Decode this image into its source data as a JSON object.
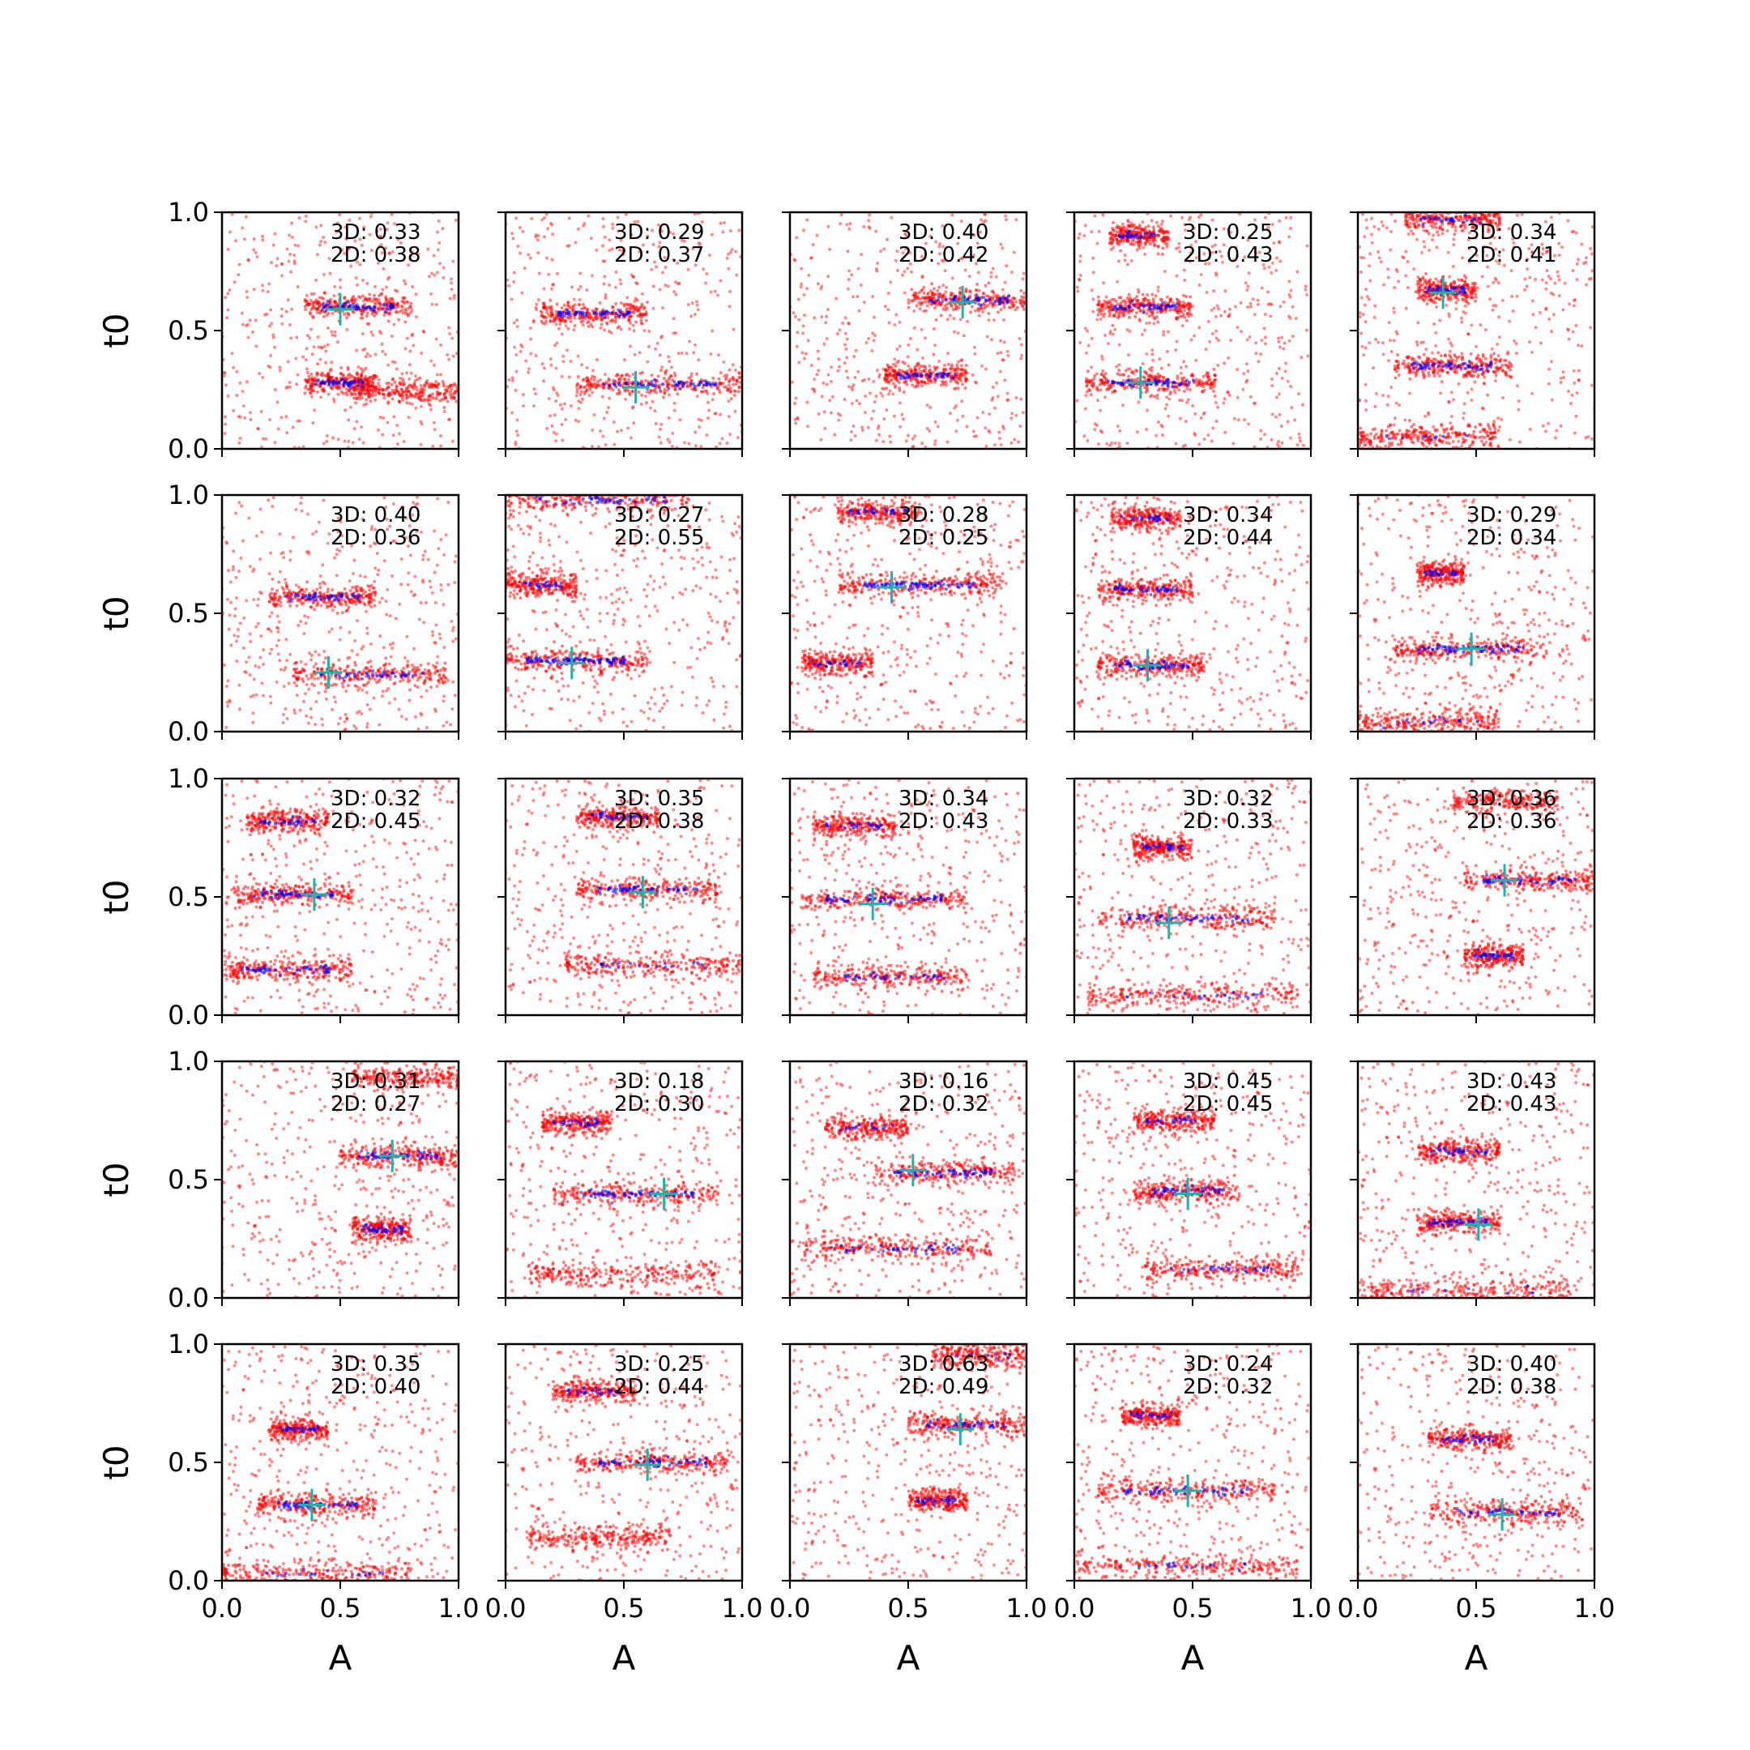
{
  "figure": {
    "xlabel": "A",
    "ylabel": "t0",
    "tick_labels": [
      "0.0",
      "0.5",
      "1.0"
    ]
  },
  "colors": {
    "scatter_3d": "#ff0000",
    "scatter_2d": "#0000ff",
    "marker": "#20b2aa",
    "axes": "#000000"
  },
  "chart_data": {
    "type": "scatter",
    "title": "",
    "grid_rows": 5,
    "grid_cols": 5,
    "xlim": [
      0,
      1
    ],
    "ylim": [
      0,
      1
    ],
    "xticks": [
      0.0,
      0.5,
      1.0
    ],
    "yticks": [
      0.0,
      0.5,
      1.0
    ],
    "grid": false,
    "series_colors": {
      "3D": "#ff0000",
      "2D": "#0000ff"
    },
    "panels": [
      {
        "label_3d": "3D: 0.33",
        "label_2d": "2D: 0.38",
        "marker": [
          0.5,
          0.59
        ],
        "clusters": [
          {
            "y": 0.6,
            "x": [
              0.35,
              0.8
            ],
            "n2": 60
          },
          {
            "y": 0.28,
            "x": [
              0.35,
              0.65
            ],
            "n2": 55
          },
          {
            "y": 0.24,
            "x": [
              0.55,
              1.0
            ],
            "n2": 0
          }
        ]
      },
      {
        "label_3d": "3D: 0.29",
        "label_2d": "2D: 0.37",
        "marker": [
          0.55,
          0.26
        ],
        "clusters": [
          {
            "y": 0.57,
            "x": [
              0.15,
              0.6
            ],
            "n2": 55
          },
          {
            "y": 0.27,
            "x": [
              0.3,
              1.0
            ],
            "n2": 60
          }
        ]
      },
      {
        "label_3d": "3D: 0.40",
        "label_2d": "2D: 0.42",
        "marker": [
          0.73,
          0.62
        ],
        "clusters": [
          {
            "y": 0.63,
            "x": [
              0.5,
              1.0
            ],
            "n2": 55
          },
          {
            "y": 0.31,
            "x": [
              0.4,
              0.75
            ],
            "n2": 40
          }
        ]
      },
      {
        "label_3d": "3D: 0.25",
        "label_2d": "2D: 0.43",
        "marker": [
          0.28,
          0.28
        ],
        "clusters": [
          {
            "y": 0.9,
            "x": [
              0.15,
              0.4
            ],
            "n2": 30
          },
          {
            "y": 0.6,
            "x": [
              0.1,
              0.5
            ],
            "n2": 45
          },
          {
            "y": 0.28,
            "x": [
              0.05,
              0.6
            ],
            "n2": 55
          }
        ]
      },
      {
        "label_3d": "3D: 0.34",
        "label_2d": "2D: 0.41",
        "marker": [
          0.36,
          0.66
        ],
        "clusters": [
          {
            "y": 0.97,
            "x": [
              0.2,
              0.6
            ],
            "n2": 30
          },
          {
            "y": 0.67,
            "x": [
              0.25,
              0.5
            ],
            "n2": 40
          },
          {
            "y": 0.35,
            "x": [
              0.15,
              0.65
            ],
            "n2": 55
          },
          {
            "y": 0.05,
            "x": [
              0.0,
              0.6
            ],
            "n2": 10
          }
        ]
      },
      {
        "label_3d": "3D: 0.40",
        "label_2d": "2D: 0.36",
        "marker": [
          0.45,
          0.25
        ],
        "clusters": [
          {
            "y": 0.57,
            "x": [
              0.2,
              0.65
            ],
            "n2": 50
          },
          {
            "y": 0.24,
            "x": [
              0.3,
              0.95
            ],
            "n2": 40
          }
        ]
      },
      {
        "label_3d": "3D: 0.27",
        "label_2d": "2D: 0.55",
        "marker": [
          0.28,
          0.29
        ],
        "clusters": [
          {
            "y": 0.3,
            "x": [
              0.0,
              0.6
            ],
            "n2": 90
          },
          {
            "y": 0.98,
            "x": [
              0.0,
              0.8
            ],
            "n2": 50
          },
          {
            "y": 0.62,
            "x": [
              0.0,
              0.3
            ],
            "n2": 25
          }
        ]
      },
      {
        "label_3d": "3D: 0.28",
        "label_2d": "2D: 0.25",
        "marker": [
          0.43,
          0.61
        ],
        "clusters": [
          {
            "y": 0.62,
            "x": [
              0.2,
              0.9
            ],
            "n2": 80
          },
          {
            "y": 0.93,
            "x": [
              0.2,
              0.55
            ],
            "n2": 30
          },
          {
            "y": 0.29,
            "x": [
              0.05,
              0.35
            ],
            "n2": 25
          }
        ]
      },
      {
        "label_3d": "3D: 0.34",
        "label_2d": "2D: 0.44",
        "marker": [
          0.31,
          0.28
        ],
        "clusters": [
          {
            "y": 0.9,
            "x": [
              0.15,
              0.45
            ],
            "n2": 25
          },
          {
            "y": 0.6,
            "x": [
              0.1,
              0.5
            ],
            "n2": 45
          },
          {
            "y": 0.28,
            "x": [
              0.1,
              0.55
            ],
            "n2": 55
          }
        ]
      },
      {
        "label_3d": "3D: 0.29",
        "label_2d": "2D: 0.34",
        "marker": [
          0.48,
          0.35
        ],
        "clusters": [
          {
            "y": 0.67,
            "x": [
              0.25,
              0.45
            ],
            "n2": 30
          },
          {
            "y": 0.35,
            "x": [
              0.15,
              0.8
            ],
            "n2": 70
          },
          {
            "y": 0.04,
            "x": [
              0.0,
              0.6
            ],
            "n2": 15
          }
        ]
      },
      {
        "label_3d": "3D: 0.32",
        "label_2d": "2D: 0.45",
        "marker": [
          0.39,
          0.51
        ],
        "clusters": [
          {
            "y": 0.82,
            "x": [
              0.1,
              0.45
            ],
            "n2": 35
          },
          {
            "y": 0.51,
            "x": [
              0.05,
              0.55
            ],
            "n2": 55
          },
          {
            "y": 0.19,
            "x": [
              0.0,
              0.55
            ],
            "n2": 50
          }
        ]
      },
      {
        "label_3d": "3D: 0.35",
        "label_2d": "2D: 0.38",
        "marker": [
          0.58,
          0.52
        ],
        "clusters": [
          {
            "y": 0.84,
            "x": [
              0.3,
              0.65
            ],
            "n2": 35
          },
          {
            "y": 0.53,
            "x": [
              0.3,
              0.9
            ],
            "n2": 55
          },
          {
            "y": 0.21,
            "x": [
              0.25,
              1.0
            ],
            "n2": 20
          }
        ]
      },
      {
        "label_3d": "3D: 0.34",
        "label_2d": "2D: 0.43",
        "marker": [
          0.35,
          0.47
        ],
        "clusters": [
          {
            "y": 0.8,
            "x": [
              0.1,
              0.45
            ],
            "n2": 25
          },
          {
            "y": 0.49,
            "x": [
              0.05,
              0.75
            ],
            "n2": 60
          },
          {
            "y": 0.16,
            "x": [
              0.1,
              0.75
            ],
            "n2": 35
          }
        ]
      },
      {
        "label_3d": "3D: 0.32",
        "label_2d": "2D: 0.33",
        "marker": [
          0.4,
          0.39
        ],
        "clusters": [
          {
            "y": 0.71,
            "x": [
              0.25,
              0.5
            ],
            "n2": 30
          },
          {
            "y": 0.41,
            "x": [
              0.1,
              0.85
            ],
            "n2": 55
          },
          {
            "y": 0.08,
            "x": [
              0.05,
              0.95
            ],
            "n2": 20
          }
        ]
      },
      {
        "label_3d": "3D: 0.36",
        "label_2d": "2D: 0.36",
        "marker": [
          0.62,
          0.57
        ],
        "clusters": [
          {
            "y": 0.57,
            "x": [
              0.45,
              1.0
            ],
            "n2": 50
          },
          {
            "y": 0.25,
            "x": [
              0.45,
              0.7
            ],
            "n2": 40
          },
          {
            "y": 0.9,
            "x": [
              0.4,
              0.85
            ],
            "n2": 0
          }
        ]
      },
      {
        "label_3d": "3D: 0.31",
        "label_2d": "2D: 0.27",
        "marker": [
          0.72,
          0.6
        ],
        "clusters": [
          {
            "y": 0.6,
            "x": [
              0.5,
              1.0
            ],
            "n2": 50
          },
          {
            "y": 0.29,
            "x": [
              0.55,
              0.8
            ],
            "n2": 40
          },
          {
            "y": 0.93,
            "x": [
              0.55,
              1.0
            ],
            "n2": 0
          }
        ]
      },
      {
        "label_3d": "3D: 0.18",
        "label_2d": "2D: 0.30",
        "marker": [
          0.67,
          0.44
        ],
        "clusters": [
          {
            "y": 0.74,
            "x": [
              0.15,
              0.45
            ],
            "n2": 30
          },
          {
            "y": 0.44,
            "x": [
              0.2,
              0.9
            ],
            "n2": 60
          },
          {
            "y": 0.1,
            "x": [
              0.1,
              0.9
            ],
            "n2": 0
          }
        ]
      },
      {
        "label_3d": "3D: 0.16",
        "label_2d": "2D: 0.32",
        "marker": [
          0.52,
          0.54
        ],
        "clusters": [
          {
            "y": 0.53,
            "x": [
              0.35,
              0.95
            ],
            "n2": 60
          },
          {
            "y": 0.21,
            "x": [
              0.05,
              0.85
            ],
            "n2": 40
          },
          {
            "y": 0.72,
            "x": [
              0.15,
              0.5
            ],
            "n2": 15
          }
        ]
      },
      {
        "label_3d": "3D: 0.45",
        "label_2d": "2D: 0.45",
        "marker": [
          0.48,
          0.44
        ],
        "clusters": [
          {
            "y": 0.75,
            "x": [
              0.25,
              0.6
            ],
            "n2": 25
          },
          {
            "y": 0.45,
            "x": [
              0.25,
              0.7
            ],
            "n2": 45
          },
          {
            "y": 0.12,
            "x": [
              0.3,
              0.95
            ],
            "n2": 30
          }
        ]
      },
      {
        "label_3d": "3D: 0.43",
        "label_2d": "2D: 0.43",
        "marker": [
          0.51,
          0.31
        ],
        "clusters": [
          {
            "y": 0.62,
            "x": [
              0.25,
              0.6
            ],
            "n2": 35
          },
          {
            "y": 0.32,
            "x": [
              0.25,
              0.6
            ],
            "n2": 45
          },
          {
            "y": 0.03,
            "x": [
              0.0,
              0.9
            ],
            "n2": 10
          }
        ]
      },
      {
        "label_3d": "3D: 0.35",
        "label_2d": "2D: 0.40",
        "marker": [
          0.38,
          0.32
        ],
        "clusters": [
          {
            "y": 0.64,
            "x": [
              0.2,
              0.45
            ],
            "n2": 30
          },
          {
            "y": 0.32,
            "x": [
              0.15,
              0.65
            ],
            "n2": 55
          },
          {
            "y": 0.03,
            "x": [
              0.0,
              0.8
            ],
            "n2": 20
          }
        ]
      },
      {
        "label_3d": "3D: 0.25",
        "label_2d": "2D: 0.44",
        "marker": [
          0.6,
          0.49
        ],
        "clusters": [
          {
            "y": 0.8,
            "x": [
              0.2,
              0.55
            ],
            "n2": 30
          },
          {
            "y": 0.5,
            "x": [
              0.3,
              0.95
            ],
            "n2": 55
          },
          {
            "y": 0.18,
            "x": [
              0.1,
              0.7
            ],
            "n2": 0
          }
        ]
      },
      {
        "label_3d": "3D: 0.63",
        "label_2d": "2D: 0.49",
        "marker": [
          0.72,
          0.64
        ],
        "clusters": [
          {
            "y": 0.66,
            "x": [
              0.5,
              1.0
            ],
            "n2": 40
          },
          {
            "y": 0.34,
            "x": [
              0.5,
              0.75
            ],
            "n2": 30
          },
          {
            "y": 0.95,
            "x": [
              0.6,
              1.0
            ],
            "n2": 10
          }
        ]
      },
      {
        "label_3d": "3D: 0.24",
        "label_2d": "2D: 0.32",
        "marker": [
          0.48,
          0.38
        ],
        "clusters": [
          {
            "y": 0.7,
            "x": [
              0.2,
              0.45
            ],
            "n2": 25
          },
          {
            "y": 0.38,
            "x": [
              0.1,
              0.85
            ],
            "n2": 50
          },
          {
            "y": 0.06,
            "x": [
              0.0,
              0.95
            ],
            "n2": 20
          }
        ]
      },
      {
        "label_3d": "3D: 0.40",
        "label_2d": "2D: 0.38",
        "marker": [
          0.61,
          0.28
        ],
        "clusters": [
          {
            "y": 0.6,
            "x": [
              0.3,
              0.65
            ],
            "n2": 35
          },
          {
            "y": 0.29,
            "x": [
              0.3,
              0.95
            ],
            "n2": 45
          }
        ]
      }
    ]
  }
}
